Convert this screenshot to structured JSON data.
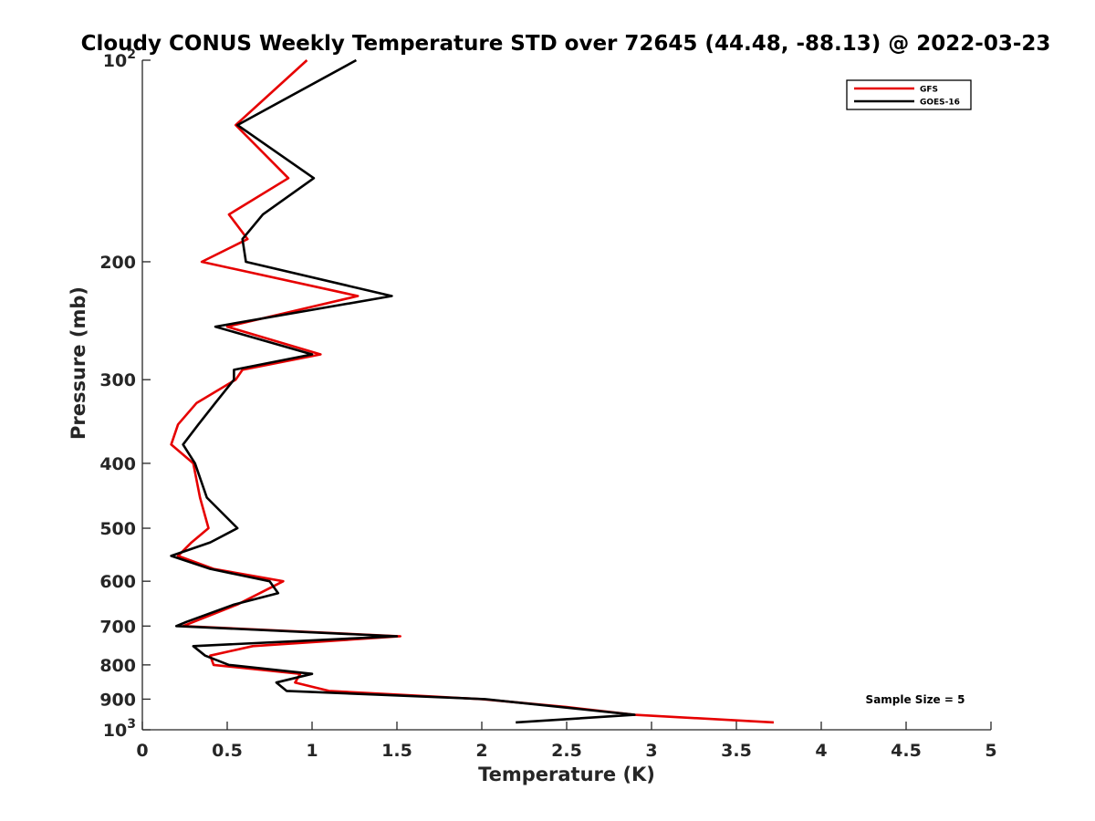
{
  "chart_data": {
    "type": "line",
    "title": "Cloudy CONUS Weekly Temperature STD over 72645 (44.48, -88.13) @ 2022-03-23",
    "xlabel": "Temperature (K)",
    "ylabel": "Pressure (mb)",
    "xlim": [
      0,
      5
    ],
    "ylim": [
      100,
      1000
    ],
    "y_scale": "log",
    "y_reversed": true,
    "x_ticks": [
      "0",
      "0.5",
      "1",
      "1.5",
      "2",
      "2.5",
      "3",
      "3.5",
      "4",
      "4.5",
      "5"
    ],
    "x_tick_values": [
      0,
      0.5,
      1,
      1.5,
      2,
      2.5,
      3,
      3.5,
      4,
      4.5,
      5
    ],
    "y_tick_values": [
      100,
      200,
      300,
      400,
      500,
      600,
      700,
      800,
      900,
      1000
    ],
    "y_ticks": [
      {
        "base": "10",
        "exp": "2"
      },
      {
        "base": "200",
        "exp": ""
      },
      {
        "base": "300",
        "exp": ""
      },
      {
        "base": "400",
        "exp": ""
      },
      {
        "base": "500",
        "exp": ""
      },
      {
        "base": "600",
        "exp": ""
      },
      {
        "base": "700",
        "exp": ""
      },
      {
        "base": "800",
        "exp": ""
      },
      {
        "base": "900",
        "exp": ""
      },
      {
        "base": "10",
        "exp": "3"
      }
    ],
    "grid": false,
    "legend_position": "top-right",
    "annotation": "Sample Size = 5",
    "series": [
      {
        "name": "GFS",
        "color": "#e60000",
        "points": [
          {
            "x": 0.97,
            "y": 100
          },
          {
            "x": 0.55,
            "y": 125
          },
          {
            "x": 0.86,
            "y": 150
          },
          {
            "x": 0.51,
            "y": 170
          },
          {
            "x": 0.62,
            "y": 185
          },
          {
            "x": 0.35,
            "y": 200
          },
          {
            "x": 1.27,
            "y": 225
          },
          {
            "x": 0.5,
            "y": 250
          },
          {
            "x": 1.05,
            "y": 275
          },
          {
            "x": 0.59,
            "y": 290
          },
          {
            "x": 0.55,
            "y": 300
          },
          {
            "x": 0.32,
            "y": 325
          },
          {
            "x": 0.21,
            "y": 350
          },
          {
            "x": 0.17,
            "y": 375
          },
          {
            "x": 0.3,
            "y": 400
          },
          {
            "x": 0.34,
            "y": 450
          },
          {
            "x": 0.39,
            "y": 500
          },
          {
            "x": 0.29,
            "y": 525
          },
          {
            "x": 0.21,
            "y": 550
          },
          {
            "x": 0.42,
            "y": 575
          },
          {
            "x": 0.83,
            "y": 600
          },
          {
            "x": 0.56,
            "y": 650
          },
          {
            "x": 0.24,
            "y": 700
          },
          {
            "x": 1.52,
            "y": 725
          },
          {
            "x": 0.65,
            "y": 750
          },
          {
            "x": 0.4,
            "y": 775
          },
          {
            "x": 0.42,
            "y": 800
          },
          {
            "x": 0.93,
            "y": 825
          },
          {
            "x": 0.9,
            "y": 850
          },
          {
            "x": 1.1,
            "y": 875
          },
          {
            "x": 2.0,
            "y": 900
          },
          {
            "x": 2.5,
            "y": 925
          },
          {
            "x": 2.9,
            "y": 950
          },
          {
            "x": 3.72,
            "y": 975
          }
        ]
      },
      {
        "name": "GOES-16",
        "color": "#000000",
        "points": [
          {
            "x": 1.26,
            "y": 100
          },
          {
            "x": 0.56,
            "y": 125
          },
          {
            "x": 1.01,
            "y": 150
          },
          {
            "x": 0.71,
            "y": 170
          },
          {
            "x": 0.59,
            "y": 185
          },
          {
            "x": 0.61,
            "y": 200
          },
          {
            "x": 1.47,
            "y": 225
          },
          {
            "x": 0.43,
            "y": 250
          },
          {
            "x": 1.0,
            "y": 275
          },
          {
            "x": 0.54,
            "y": 290
          },
          {
            "x": 0.54,
            "y": 300
          },
          {
            "x": 0.43,
            "y": 325
          },
          {
            "x": 0.33,
            "y": 350
          },
          {
            "x": 0.24,
            "y": 375
          },
          {
            "x": 0.31,
            "y": 400
          },
          {
            "x": 0.38,
            "y": 450
          },
          {
            "x": 0.56,
            "y": 500
          },
          {
            "x": 0.4,
            "y": 525
          },
          {
            "x": 0.17,
            "y": 550
          },
          {
            "x": 0.4,
            "y": 575
          },
          {
            "x": 0.75,
            "y": 600
          },
          {
            "x": 0.8,
            "y": 625
          },
          {
            "x": 0.54,
            "y": 650
          },
          {
            "x": 0.26,
            "y": 690
          },
          {
            "x": 0.2,
            "y": 700
          },
          {
            "x": 1.5,
            "y": 725
          },
          {
            "x": 0.3,
            "y": 750
          },
          {
            "x": 0.37,
            "y": 775
          },
          {
            "x": 0.51,
            "y": 800
          },
          {
            "x": 1.0,
            "y": 825
          },
          {
            "x": 0.79,
            "y": 850
          },
          {
            "x": 0.85,
            "y": 875
          },
          {
            "x": 2.02,
            "y": 900
          },
          {
            "x": 2.9,
            "y": 950
          },
          {
            "x": 2.2,
            "y": 975
          }
        ]
      }
    ]
  }
}
